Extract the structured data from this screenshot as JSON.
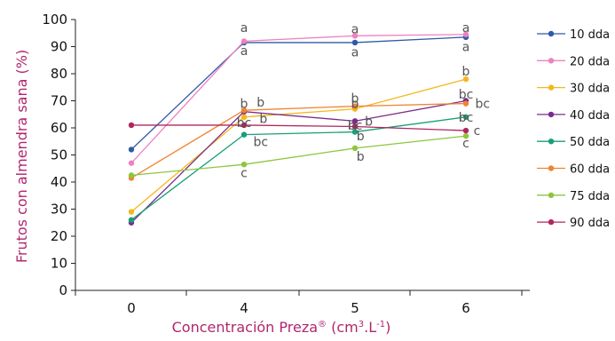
{
  "chart_data": {
    "type": "line",
    "xlabel": "Concentración Preza® (cm3.L-1)",
    "xlabel_parts": {
      "main": "Concentración Preza",
      "reg": "®",
      "open": " (cm",
      "sup1": "3",
      "mid": ".L",
      "sup2": "-1",
      "close": ")"
    },
    "ylabel": "Frutos con almendra sana (%)",
    "categories": [
      "0",
      "4",
      "5",
      "6"
    ],
    "ylim": [
      0,
      100
    ],
    "yticks": [
      "0",
      "10",
      "20",
      "30",
      "40",
      "50",
      "60",
      "70",
      "80",
      "90",
      "100"
    ],
    "grid": false,
    "legend_position": "right",
    "series": [
      {
        "name": "10 dda",
        "color": "#2e5aa8",
        "values": [
          52,
          91.5,
          91.5,
          93.5
        ]
      },
      {
        "name": "20 dda",
        "color": "#ee82c0",
        "values": [
          47,
          92,
          94,
          94.5
        ]
      },
      {
        "name": "30 dda",
        "color": "#f3b81c",
        "values": [
          29,
          64,
          67,
          78
        ]
      },
      {
        "name": "40 dda",
        "color": "#7b2c8c",
        "values": [
          25,
          66,
          62.5,
          70
        ]
      },
      {
        "name": "50 dda",
        "color": "#1a9e7a",
        "values": [
          26,
          57.5,
          58.5,
          64
        ]
      },
      {
        "name": "60 dda",
        "color": "#ef8430",
        "values": [
          41.5,
          66.5,
          68,
          69
        ]
      },
      {
        "name": "75 dda",
        "color": "#8cc63f",
        "values": [
          42.5,
          46.5,
          52.5,
          57
        ]
      },
      {
        "name": "90 dda",
        "color": "#b0265e",
        "values": [
          61,
          61,
          60.5,
          59
        ]
      }
    ],
    "annotations": [
      {
        "text": "a",
        "x": "4",
        "y": 97
      },
      {
        "text": "a",
        "x": "4",
        "y": 88.5
      },
      {
        "text": "a",
        "x": "5",
        "y": 96.5
      },
      {
        "text": "a",
        "x": "5",
        "y": 88
      },
      {
        "text": "a",
        "x": "6",
        "y": 97
      },
      {
        "text": "a",
        "x": "6",
        "y": 90
      },
      {
        "text": "b",
        "x": "6",
        "y": 81
      },
      {
        "text": "b",
        "x": "4",
        "y": 69
      },
      {
        "text": "b",
        "x": "4.3",
        "y": 69.5
      },
      {
        "text": "bc",
        "x": "4",
        "y": 62
      },
      {
        "text": "b",
        "x": "4.35",
        "y": 63.5
      },
      {
        "text": "bc",
        "x": "4.3",
        "y": 55
      },
      {
        "text": "c",
        "x": "4",
        "y": 43.5
      },
      {
        "text": "b",
        "x": "5",
        "y": 69
      },
      {
        "text": "b",
        "x": "5",
        "y": 71
      },
      {
        "text": "b",
        "x": "5.25",
        "y": 62.5
      },
      {
        "text": "bc",
        "x": "5",
        "y": 61
      },
      {
        "text": "b",
        "x": "5.1",
        "y": 57
      },
      {
        "text": "b",
        "x": "5.1",
        "y": 49.5
      },
      {
        "text": "bc",
        "x": "6",
        "y": 72.5
      },
      {
        "text": "bc",
        "x": "6.3",
        "y": 69
      },
      {
        "text": "bc",
        "x": "6",
        "y": 64
      },
      {
        "text": "c",
        "x": "6.2",
        "y": 59
      },
      {
        "text": "c",
        "x": "6",
        "y": 54.5
      }
    ]
  }
}
